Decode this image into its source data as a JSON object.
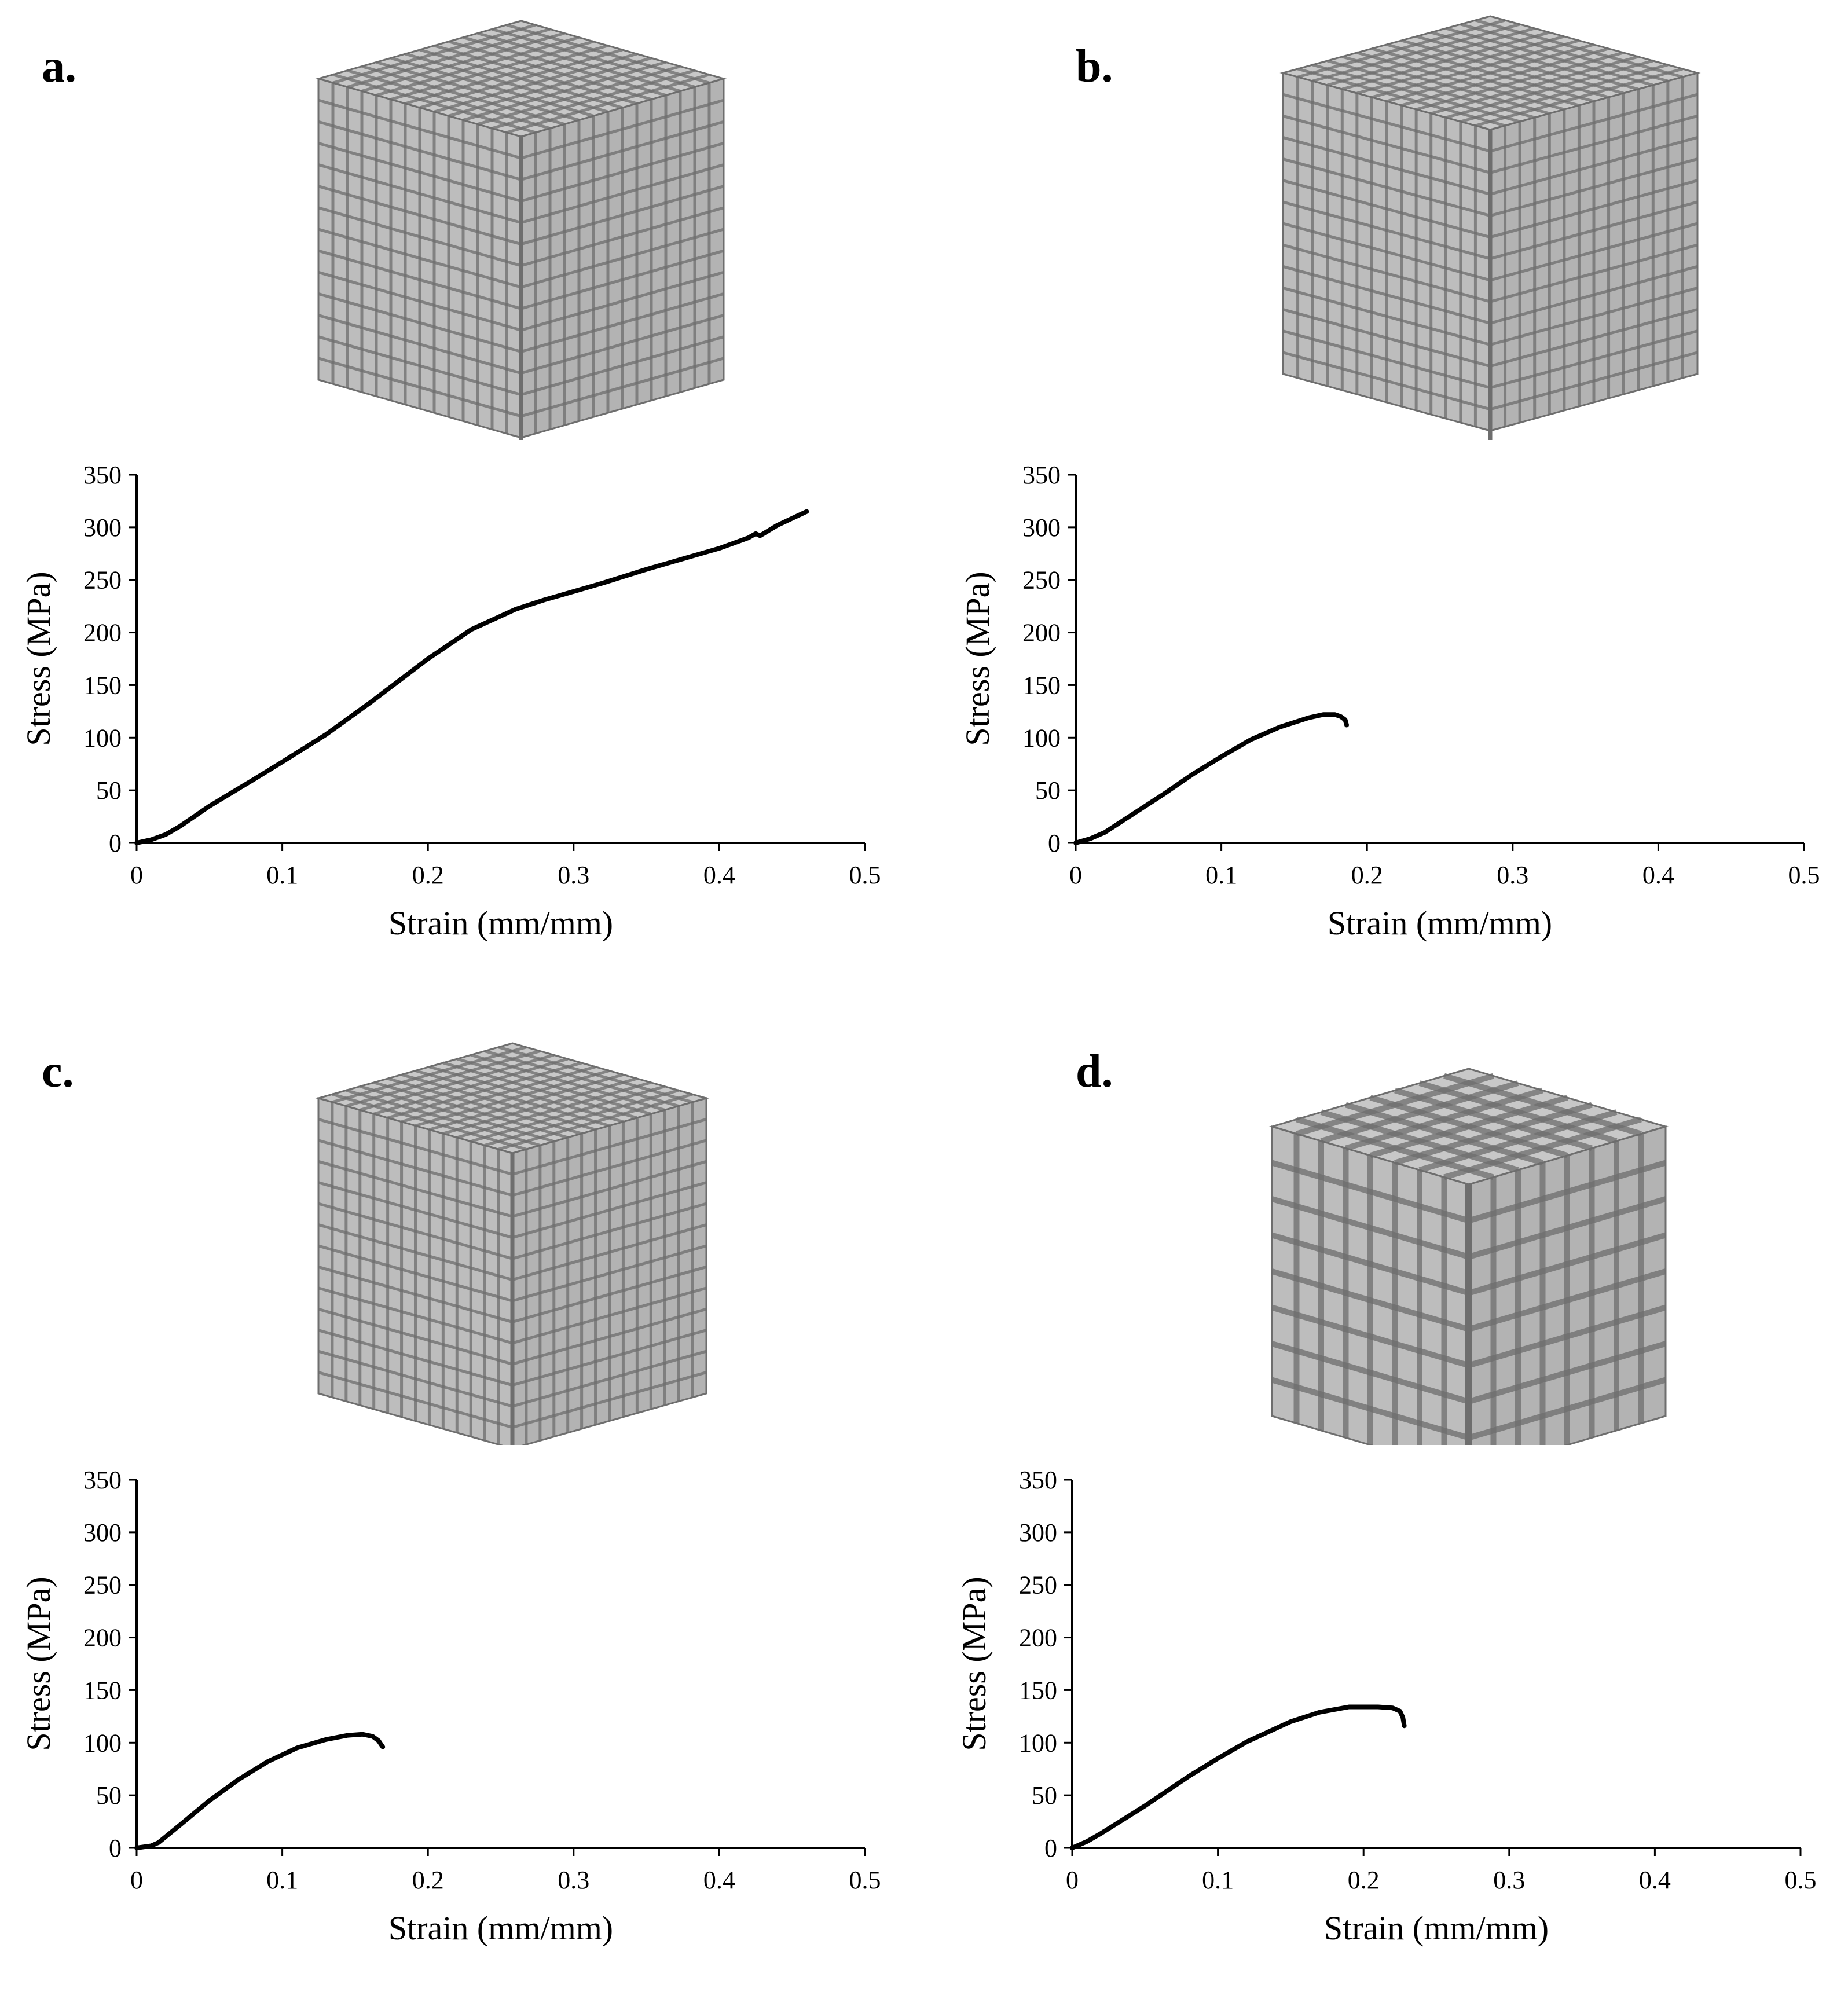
{
  "figure": {
    "colors": {
      "curve": "#000000",
      "axis": "#000000",
      "lattice_bg": "#d9d9d9",
      "lattice_strut": "#a6a6a6",
      "lattice_edge": "#6e6e6e"
    },
    "lattice_icon_names": [
      "lattice-cube-a",
      "lattice-cube-b",
      "lattice-cube-c",
      "lattice-cube-d"
    ]
  },
  "panels": [
    {
      "label": "a."
    },
    {
      "label": "b."
    },
    {
      "label": "c."
    },
    {
      "label": "d."
    }
  ],
  "chart_data": [
    {
      "type": "line",
      "panel": "a.",
      "xlabel": "Strain (mm/mm)",
      "ylabel": "Stress (MPa)",
      "xlim": [
        0,
        0.5
      ],
      "ylim": [
        0,
        350
      ],
      "xticks": [
        "0",
        "0.1",
        "0.2",
        "0.3",
        "0.4",
        "0.5"
      ],
      "yticks": [
        "0",
        "50",
        "100",
        "150",
        "200",
        "250",
        "300",
        "350"
      ],
      "series": [
        {
          "name": "a",
          "x": [
            0,
            0.01,
            0.02,
            0.03,
            0.05,
            0.08,
            0.1,
            0.13,
            0.16,
            0.2,
            0.23,
            0.26,
            0.28,
            0.29,
            0.32,
            0.35,
            0.38,
            0.4,
            0.42,
            0.425,
            0.428,
            0.44,
            0.46
          ],
          "y": [
            0,
            3,
            8,
            16,
            35,
            60,
            77,
            103,
            133,
            175,
            203,
            222,
            231,
            235,
            247,
            260,
            272,
            280,
            290,
            294,
            292,
            302,
            315
          ]
        }
      ]
    },
    {
      "type": "line",
      "panel": "b.",
      "xlabel": "Strain (mm/mm)",
      "ylabel": "Stress (MPa)",
      "xlim": [
        0,
        0.5
      ],
      "ylim": [
        0,
        350
      ],
      "xticks": [
        "0",
        "0.1",
        "0.2",
        "0.3",
        "0.4",
        "0.5"
      ],
      "yticks": [
        "0",
        "50",
        "100",
        "150",
        "200",
        "250",
        "300",
        "350"
      ],
      "series": [
        {
          "name": "b",
          "x": [
            0,
            0.01,
            0.02,
            0.04,
            0.06,
            0.08,
            0.1,
            0.12,
            0.14,
            0.16,
            0.17,
            0.178,
            0.182,
            0.185,
            0.186
          ],
          "y": [
            0,
            4,
            10,
            28,
            46,
            65,
            82,
            98,
            110,
            119,
            122,
            122,
            120,
            117,
            112
          ]
        }
      ]
    },
    {
      "type": "line",
      "panel": "c.",
      "xlabel": "Strain (mm/mm)",
      "ylabel": "Stress (MPa)",
      "xlim": [
        0,
        0.5
      ],
      "ylim": [
        0,
        350
      ],
      "xticks": [
        "0",
        "0.1",
        "0.2",
        "0.3",
        "0.4",
        "0.5"
      ],
      "yticks": [
        "0",
        "50",
        "100",
        "150",
        "200",
        "250",
        "300",
        "350"
      ],
      "series": [
        {
          "name": "c",
          "x": [
            0,
            0.01,
            0.015,
            0.03,
            0.05,
            0.07,
            0.09,
            0.11,
            0.13,
            0.145,
            0.155,
            0.162,
            0.166,
            0.169
          ],
          "y": [
            0,
            2,
            5,
            22,
            45,
            65,
            82,
            95,
            103,
            107,
            108,
            106,
            102,
            96
          ]
        }
      ]
    },
    {
      "type": "line",
      "panel": "d.",
      "xlabel": "Strain (mm/mm)",
      "ylabel": "Stress (MPa)",
      "xlim": [
        0,
        0.5
      ],
      "ylim": [
        0,
        350
      ],
      "xticks": [
        "0",
        "0.1",
        "0.2",
        "0.3",
        "0.4",
        "0.5"
      ],
      "yticks": [
        "0",
        "50",
        "100",
        "150",
        "200",
        "250",
        "300",
        "350"
      ],
      "series": [
        {
          "name": "d",
          "x": [
            0,
            0.01,
            0.02,
            0.05,
            0.08,
            0.1,
            0.12,
            0.15,
            0.17,
            0.19,
            0.21,
            0.22,
            0.225,
            0.227,
            0.228
          ],
          "y": [
            0,
            6,
            14,
            40,
            68,
            85,
            101,
            120,
            129,
            134,
            134,
            133,
            130,
            124,
            116
          ]
        }
      ]
    }
  ]
}
